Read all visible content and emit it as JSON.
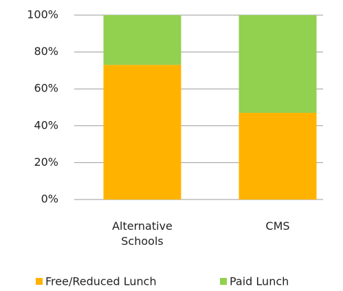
{
  "chart_data": {
    "type": "stacked_bar",
    "categories": [
      "Alternative Schools",
      "CMS"
    ],
    "series": [
      {
        "name": "Free/Reduced Lunch",
        "color": "#FFB300",
        "values": [
          73,
          47
        ]
      },
      {
        "name": "Paid Lunch",
        "color": "#92D050",
        "values": [
          27,
          53
        ]
      }
    ],
    "ylim": [
      0,
      100
    ],
    "yticks": [
      {
        "value": 0,
        "label": "0%"
      },
      {
        "value": 20,
        "label": "20%"
      },
      {
        "value": 40,
        "label": "40%"
      },
      {
        "value": 60,
        "label": "60%"
      },
      {
        "value": 80,
        "label": "80%"
      },
      {
        "value": 100,
        "label": "100%"
      }
    ],
    "grid": true,
    "legend": "bottom"
  }
}
